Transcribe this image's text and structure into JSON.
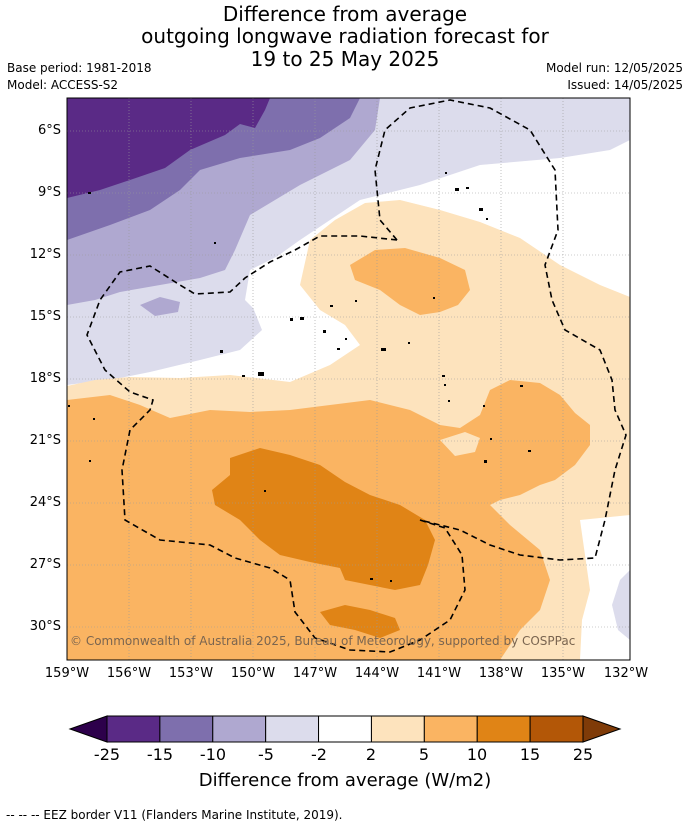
{
  "title": {
    "line1": "Difference from average",
    "line2": "outgoing longwave radiation forecast for",
    "line3": "19 to 25 May 2025"
  },
  "meta": {
    "base_period": "Base period: 1981-2018",
    "model": "Model: ACCESS-S2",
    "model_run": "Model run: 12/05/2025",
    "issued": "Issued: 14/05/2025"
  },
  "lat_labels": [
    "6°S",
    "9°S",
    "12°S",
    "15°S",
    "18°S",
    "21°S",
    "24°S",
    "27°S",
    "30°S"
  ],
  "lon_labels": [
    "159°W",
    "156°W",
    "153°W",
    "150°W",
    "147°W",
    "144°W",
    "141°W",
    "138°W",
    "135°W",
    "132°W"
  ],
  "colorbar": {
    "ticks": [
      "-25",
      "-15",
      "-10",
      "-5",
      "-2",
      "2",
      "5",
      "10",
      "15",
      "25"
    ],
    "colors": [
      "#5a2a86",
      "#7e6fad",
      "#afa8d0",
      "#dcdcec",
      "#ffffff",
      "#fde3bd",
      "#fab462",
      "#e08416",
      "#b35707"
    ],
    "under_color": "#2d004b",
    "over_color": "#7f3b08",
    "label": "Difference from average (W/m2)"
  },
  "copyright": "© Commonwealth of Australia 2025, Bureau of Meteorology, supported by COSPPac",
  "footer": "--  --  -- EEZ border V11 (Flanders Marine Institute, 2019)."
}
